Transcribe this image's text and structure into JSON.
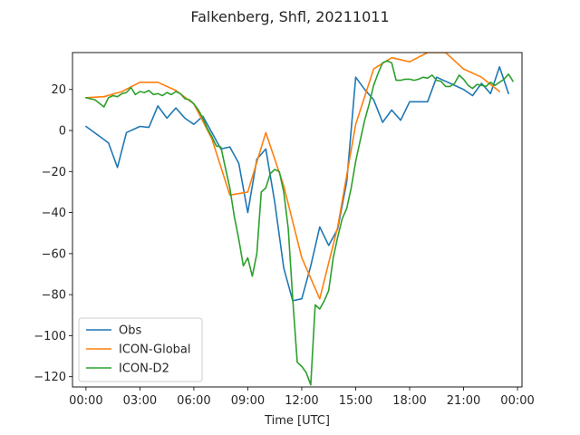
{
  "chart_data": {
    "type": "line",
    "title": "Falkenberg, Shfl, 20211011",
    "xlabel": "Time [UTC]",
    "ylabel": "",
    "x_unit": "hours",
    "xlim": [
      -0.75,
      24.25
    ],
    "ylim": [
      -125,
      38
    ],
    "x_ticks": [
      0,
      3,
      6,
      9,
      12,
      15,
      18,
      21,
      24
    ],
    "x_tick_labels": [
      "00:00",
      "03:00",
      "06:00",
      "09:00",
      "12:00",
      "15:00",
      "18:00",
      "21:00",
      "00:00"
    ],
    "y_ticks": [
      -120,
      -100,
      -80,
      -60,
      -40,
      -20,
      0,
      20
    ],
    "y_tick_labels": [
      "−120",
      "−100",
      "−80",
      "−60",
      "−40",
      "−20",
      "0",
      "20"
    ],
    "legend_position": "lower-left",
    "series": [
      {
        "name": "Obs",
        "color": "#1f77b4",
        "x": [
          0.0,
          1.25,
          1.75,
          2.25,
          3.0,
          3.5,
          4.0,
          4.5,
          5.0,
          5.5,
          6.0,
          6.5,
          7.0,
          7.5,
          8.0,
          8.5,
          9.0,
          9.5,
          10.0,
          10.5,
          11.0,
          11.5,
          12.0,
          12.5,
          13.0,
          13.5,
          14.0,
          14.5,
          15.0,
          15.5,
          16.0,
          16.5,
          17.0,
          17.5,
          18.0,
          19.0,
          19.5,
          20.0,
          21.0,
          21.5,
          22.0,
          22.5,
          23.0,
          23.5
        ],
        "y": [
          2,
          -6,
          -18,
          -1,
          2,
          1.5,
          12,
          6,
          11,
          6,
          3,
          7,
          -1,
          -9,
          -8,
          -16,
          -40,
          -14,
          -9,
          -35,
          -67,
          -83,
          -82,
          -66,
          -47,
          -56,
          -48,
          -25,
          26,
          20,
          15,
          4,
          10,
          5,
          14,
          14,
          26,
          24,
          20,
          17,
          23,
          18,
          31,
          18
        ]
      },
      {
        "name": "ICON-Global",
        "color": "#ff7f0e",
        "x": [
          0.0,
          1.0,
          2.0,
          3.0,
          4.0,
          5.0,
          6.0,
          7.0,
          8.0,
          9.0,
          10.0,
          11.0,
          12.0,
          13.0,
          14.0,
          15.0,
          16.0,
          17.0,
          18.0,
          19.0,
          20.0,
          21.0,
          22.0,
          23.0
        ],
        "y": [
          16,
          16.5,
          19,
          23.5,
          23.5,
          19.5,
          13,
          -4,
          -31.5,
          -30,
          -1,
          -27,
          -62,
          -82,
          -47,
          3,
          30,
          35.5,
          33.5,
          38,
          38,
          30,
          26,
          19
        ]
      },
      {
        "name": "ICON-D2",
        "color": "#2ca02c",
        "x": [
          0.0,
          0.5,
          1.0,
          1.25,
          1.5,
          1.75,
          2.0,
          2.25,
          2.5,
          2.75,
          3.0,
          3.25,
          3.5,
          3.75,
          4.0,
          4.25,
          4.5,
          4.75,
          5.0,
          5.25,
          5.5,
          5.75,
          6.0,
          6.25,
          6.5,
          6.75,
          7.0,
          7.25,
          7.5,
          7.75,
          8.0,
          8.25,
          8.5,
          8.75,
          9.0,
          9.25,
          9.5,
          9.75,
          10.0,
          10.25,
          10.5,
          10.75,
          11.0,
          11.25,
          11.5,
          11.75,
          12.0,
          12.25,
          12.5,
          12.75,
          13.0,
          13.25,
          13.5,
          13.75,
          14.0,
          14.25,
          14.5,
          14.75,
          15.0,
          15.25,
          15.5,
          15.75,
          16.0,
          16.25,
          16.5,
          16.75,
          17.0,
          17.25,
          17.5,
          17.75,
          18.0,
          18.25,
          18.5,
          18.75,
          19.0,
          19.25,
          19.5,
          19.75,
          20.0,
          20.25,
          20.5,
          20.75,
          21.0,
          21.25,
          21.5,
          21.75,
          22.0,
          22.25,
          22.5,
          22.75,
          23.0,
          23.25,
          23.5,
          23.75
        ],
        "y": [
          16,
          15,
          11.5,
          16,
          17,
          16.5,
          18,
          18.5,
          21,
          17.5,
          19,
          18.5,
          19.5,
          17.5,
          18,
          17,
          18.5,
          17.5,
          19,
          18,
          15.5,
          15,
          13,
          10,
          6,
          1,
          -3,
          -7.5,
          -8,
          -18,
          -28,
          -42,
          -53,
          -66,
          -62,
          -71,
          -60,
          -30,
          -28,
          -21,
          -19,
          -20,
          -30,
          -48,
          -82,
          -113,
          -115,
          -118,
          -124,
          -85,
          -87,
          -83,
          -78,
          -62,
          -52,
          -43,
          -38,
          -28,
          -15,
          -5,
          5,
          13,
          22,
          28,
          33,
          34,
          33,
          24.5,
          24.5,
          25,
          25,
          24.5,
          25,
          26,
          25.5,
          27,
          24.5,
          24,
          21.5,
          21.5,
          23,
          27,
          25,
          22,
          20.5,
          22.5,
          22,
          21.5,
          23.5,
          22,
          23.5,
          25,
          27.5,
          24
        ]
      }
    ]
  }
}
